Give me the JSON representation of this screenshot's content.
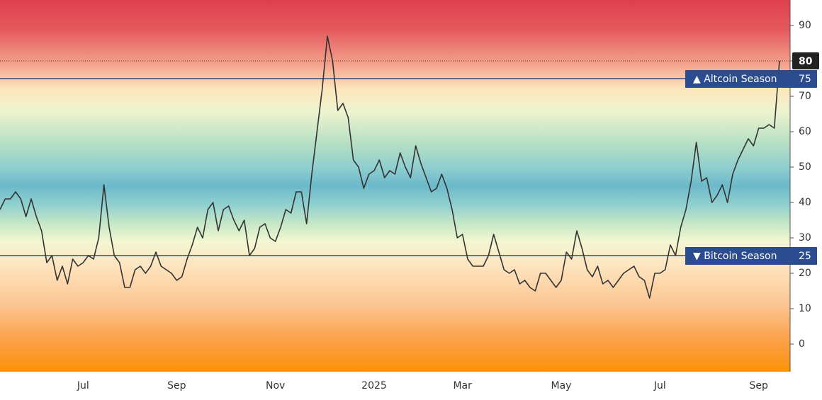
{
  "chart_data": {
    "type": "line",
    "categories": [
      null,
      null,
      null,
      null,
      null,
      null,
      null,
      null,
      null,
      null,
      null,
      null,
      null,
      null,
      null,
      null,
      "Jul",
      null,
      null,
      null,
      null,
      null,
      null,
      null,
      null,
      null,
      null,
      null,
      null,
      null,
      null,
      null,
      null,
      null,
      "Sep",
      null,
      null,
      null,
      null,
      null,
      null,
      null,
      null,
      null,
      null,
      null,
      null,
      null,
      null,
      null,
      null,
      null,
      null,
      "Nov",
      null,
      null,
      null,
      null,
      null,
      null,
      null,
      null,
      null,
      null,
      null,
      null,
      null,
      null,
      null,
      null,
      null,
      null,
      "2025",
      null,
      null,
      null,
      null,
      null,
      null,
      null,
      null,
      null,
      null,
      null,
      null,
      null,
      null,
      null,
      null,
      "Mar",
      null,
      null,
      null,
      null,
      null,
      null,
      null,
      null,
      null,
      null,
      null,
      null,
      null,
      null,
      null,
      null,
      null,
      null,
      "May",
      null,
      null,
      null,
      null,
      null,
      null,
      null,
      null,
      null,
      null,
      null,
      null,
      null,
      null,
      null,
      null,
      null,
      null,
      "Jul",
      null,
      null,
      null,
      null,
      null,
      null,
      null,
      null,
      null,
      null,
      null,
      null,
      null,
      null,
      null,
      null,
      null,
      null,
      "Sep",
      null,
      null,
      null,
      null
    ],
    "values": [
      38,
      41,
      41,
      43,
      41,
      36,
      41,
      36,
      32,
      23,
      25,
      18,
      22,
      17,
      24,
      22,
      23,
      25,
      24,
      30,
      45,
      33,
      25,
      23,
      16,
      16,
      21,
      22,
      20,
      22,
      26,
      22,
      21,
      20,
      18,
      19,
      24,
      28,
      33,
      30,
      38,
      40,
      32,
      38,
      39,
      35,
      32,
      35,
      25,
      27,
      33,
      34,
      30,
      29,
      33,
      38,
      37,
      43,
      43,
      34,
      48,
      60,
      72,
      87,
      80,
      66,
      68,
      64,
      52,
      50,
      44,
      48,
      49,
      52,
      47,
      49,
      48,
      54,
      50,
      47,
      56,
      51,
      47,
      43,
      44,
      48,
      44,
      38,
      30,
      31,
      24,
      22,
      22,
      22,
      25,
      31,
      26,
      21,
      20,
      21,
      17,
      18,
      16,
      15,
      20,
      20,
      18,
      16,
      18,
      26,
      24,
      32,
      27,
      21,
      19,
      22,
      17,
      18,
      16,
      18,
      20,
      21,
      22,
      19,
      18,
      13,
      20,
      20,
      21,
      28,
      25,
      33,
      38,
      46,
      57,
      46,
      47,
      40,
      42,
      45,
      40,
      48,
      52,
      55,
      58,
      56,
      61,
      61,
      62,
      61,
      80
    ],
    "color": "#333333",
    "ylim": [
      -7.8,
      97.2
    ],
    "yticks": [
      0,
      10,
      20,
      30,
      40,
      50,
      60,
      70,
      80,
      90
    ],
    "reference_lines": [
      {
        "value": 75,
        "label": "▲ Altcoin Season"
      },
      {
        "value": 25,
        "label": "▼ Bitcoin Season"
      }
    ],
    "reference_color": "#2b4d8f"
  }
}
